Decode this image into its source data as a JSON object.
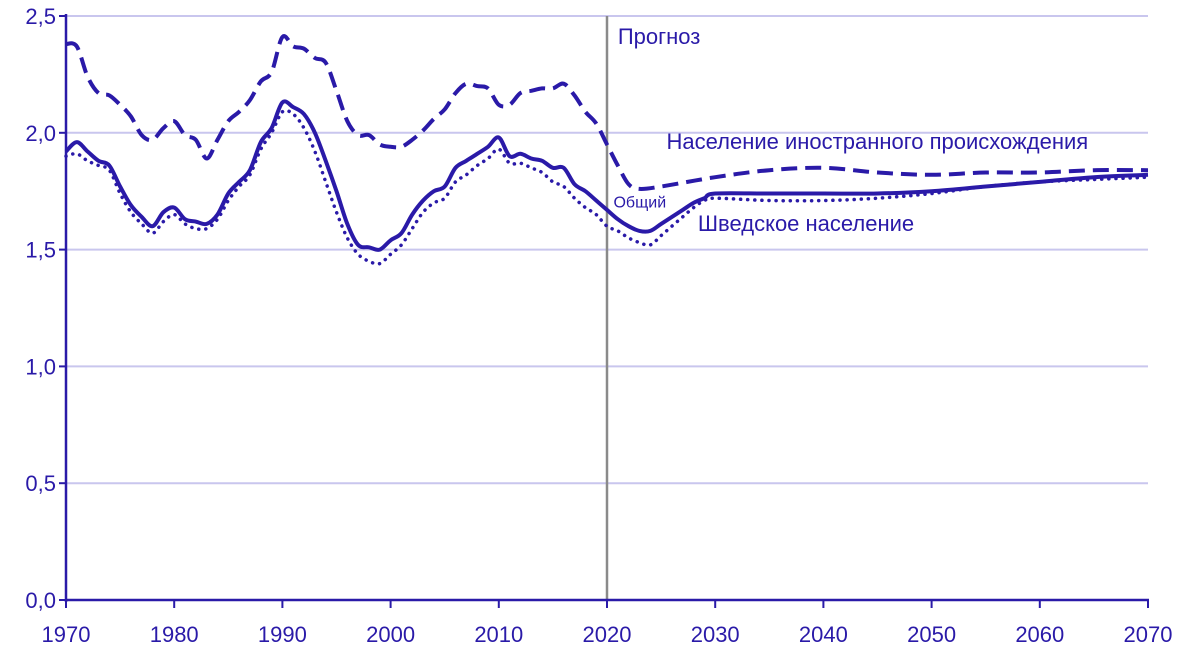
{
  "chart_data": {
    "type": "line",
    "title": "",
    "xlabel": "",
    "ylabel": "",
    "xlim": [
      1970,
      2070
    ],
    "ylim": [
      0,
      2.5
    ],
    "grid": true,
    "x_ticks": [
      "1970",
      "1980",
      "1990",
      "2000",
      "2010",
      "2020",
      "2030",
      "2040",
      "2050",
      "2060",
      "2070"
    ],
    "y_ticks": [
      "0,0",
      "0,5",
      "1,0",
      "1,5",
      "2,0",
      "2,5"
    ],
    "y_tick_values": [
      0,
      0.5,
      1.0,
      1.5,
      2.0,
      2.5
    ],
    "x_tick_values": [
      1970,
      1980,
      1990,
      2000,
      2010,
      2020,
      2030,
      2040,
      2050,
      2060,
      2070
    ],
    "forecast_line": {
      "x": 2020,
      "label": "Прогноз"
    },
    "colors": {
      "series": "#2a1aa8",
      "grid": "#c9c6ee",
      "forecast": "#8a8a8a"
    },
    "series": [
      {
        "name": "Общий",
        "style": "solid",
        "x": [
          1970,
          1971,
          1972,
          1973,
          1974,
          1975,
          1976,
          1977,
          1978,
          1979,
          1980,
          1981,
          1982,
          1983,
          1984,
          1985,
          1986,
          1987,
          1988,
          1989,
          1990,
          1991,
          1992,
          1993,
          1994,
          1995,
          1996,
          1997,
          1998,
          1999,
          2000,
          2001,
          2002,
          2003,
          2004,
          2005,
          2006,
          2007,
          2008,
          2009,
          2010,
          2011,
          2012,
          2013,
          2014,
          2015,
          2016,
          2017,
          2018,
          2019,
          2020,
          2021,
          2022,
          2023,
          2024,
          2025,
          2026,
          2027,
          2028,
          2029,
          2030,
          2035,
          2040,
          2045,
          2050,
          2055,
          2060,
          2065,
          2070
        ],
        "values": [
          1.92,
          1.96,
          1.92,
          1.88,
          1.86,
          1.77,
          1.69,
          1.64,
          1.6,
          1.66,
          1.68,
          1.63,
          1.62,
          1.61,
          1.65,
          1.74,
          1.79,
          1.84,
          1.96,
          2.02,
          2.13,
          2.11,
          2.08,
          2.0,
          1.88,
          1.75,
          1.61,
          1.52,
          1.51,
          1.5,
          1.54,
          1.57,
          1.65,
          1.71,
          1.75,
          1.77,
          1.85,
          1.88,
          1.91,
          1.94,
          1.98,
          1.9,
          1.91,
          1.89,
          1.88,
          1.85,
          1.85,
          1.78,
          1.75,
          1.71,
          1.67,
          1.63,
          1.6,
          1.58,
          1.58,
          1.61,
          1.64,
          1.67,
          1.7,
          1.72,
          1.74,
          1.74,
          1.74,
          1.74,
          1.75,
          1.77,
          1.79,
          1.81,
          1.82
        ]
      },
      {
        "name": "Население иностранного происхождения",
        "style": "dashed",
        "x": [
          1970,
          1971,
          1972,
          1973,
          1974,
          1975,
          1976,
          1977,
          1978,
          1979,
          1980,
          1981,
          1982,
          1983,
          1984,
          1985,
          1986,
          1987,
          1988,
          1989,
          1990,
          1991,
          1992,
          1993,
          1994,
          1995,
          1996,
          1997,
          1998,
          1999,
          2000,
          2001,
          2002,
          2003,
          2004,
          2005,
          2006,
          2007,
          2008,
          2009,
          2010,
          2011,
          2012,
          2013,
          2014,
          2015,
          2016,
          2017,
          2018,
          2019,
          2020,
          2021,
          2022,
          2023,
          2025,
          2030,
          2035,
          2040,
          2045,
          2050,
          2055,
          2060,
          2065,
          2070
        ],
        "values": [
          2.38,
          2.37,
          2.24,
          2.17,
          2.16,
          2.12,
          2.07,
          1.99,
          1.97,
          2.02,
          2.05,
          1.99,
          1.97,
          1.89,
          1.97,
          2.05,
          2.09,
          2.14,
          2.22,
          2.26,
          2.41,
          2.37,
          2.36,
          2.32,
          2.3,
          2.18,
          2.05,
          1.99,
          1.99,
          1.95,
          1.94,
          1.94,
          1.97,
          2.01,
          2.06,
          2.1,
          2.17,
          2.21,
          2.2,
          2.19,
          2.12,
          2.12,
          2.17,
          2.18,
          2.19,
          2.19,
          2.21,
          2.16,
          2.09,
          2.04,
          1.95,
          1.86,
          1.78,
          1.76,
          1.77,
          1.81,
          1.84,
          1.85,
          1.83,
          1.82,
          1.83,
          1.83,
          1.84,
          1.84
        ]
      },
      {
        "name": "Шведское население",
        "style": "dotted",
        "x": [
          1970,
          1971,
          1972,
          1973,
          1974,
          1975,
          1976,
          1977,
          1978,
          1979,
          1980,
          1981,
          1982,
          1983,
          1984,
          1985,
          1986,
          1987,
          1988,
          1989,
          1990,
          1991,
          1992,
          1993,
          1994,
          1995,
          1996,
          1997,
          1998,
          1999,
          2000,
          2001,
          2002,
          2003,
          2004,
          2005,
          2006,
          2007,
          2008,
          2009,
          2010,
          2011,
          2012,
          2013,
          2014,
          2015,
          2016,
          2017,
          2018,
          2019,
          2020,
          2021,
          2022,
          2023,
          2024,
          2025,
          2026,
          2027,
          2028,
          2029,
          2030,
          2035,
          2040,
          2045,
          2050,
          2055,
          2060,
          2065,
          2070
        ],
        "values": [
          1.9,
          1.91,
          1.88,
          1.86,
          1.84,
          1.74,
          1.66,
          1.61,
          1.57,
          1.62,
          1.65,
          1.61,
          1.59,
          1.59,
          1.63,
          1.71,
          1.77,
          1.82,
          1.93,
          2.0,
          2.09,
          2.08,
          2.02,
          1.92,
          1.79,
          1.66,
          1.55,
          1.48,
          1.45,
          1.44,
          1.48,
          1.52,
          1.59,
          1.66,
          1.7,
          1.72,
          1.79,
          1.82,
          1.86,
          1.89,
          1.93,
          1.87,
          1.87,
          1.85,
          1.83,
          1.79,
          1.77,
          1.72,
          1.68,
          1.65,
          1.6,
          1.58,
          1.55,
          1.53,
          1.52,
          1.56,
          1.6,
          1.64,
          1.68,
          1.71,
          1.72,
          1.71,
          1.71,
          1.72,
          1.74,
          1.77,
          1.79,
          1.8,
          1.81
        ]
      }
    ],
    "annotations": [
      {
        "text": "Прогноз",
        "x": 2021,
        "y": 2.38
      },
      {
        "text": "Население иностранного происхождения",
        "x": 2025.5,
        "y": 1.93
      },
      {
        "text": "Общий",
        "x": 2020.6,
        "y": 1.68
      },
      {
        "text": "Шведское население",
        "x": 2028.4,
        "y": 1.58
      }
    ]
  }
}
